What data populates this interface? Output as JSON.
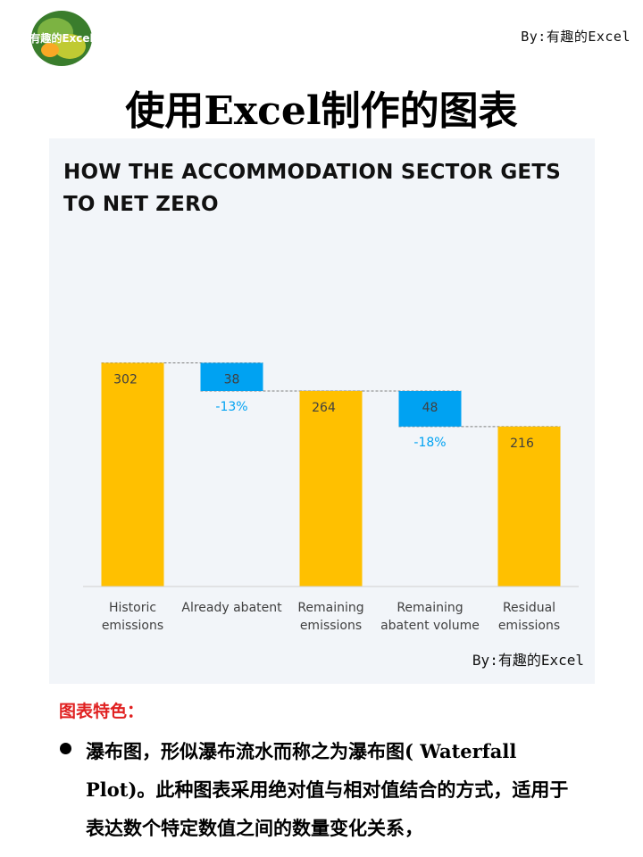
{
  "header": {
    "logo_text": "有趣的Excel",
    "byline": "By:有趣的Excel",
    "title": "使用Excel制作的图表"
  },
  "chart_panel": {
    "byline": "By:有趣的Excel"
  },
  "chart_data": {
    "type": "waterfall",
    "title": "HOW THE ACCOMMODATION SECTOR GETS TO NET ZERO",
    "categories": [
      "Historic emissions",
      "Already abatent",
      "Remaining emissions",
      "Remaining abatent volume",
      "Residual emissions"
    ],
    "values": [
      302,
      38,
      264,
      48,
      216
    ],
    "kinds": [
      "total",
      "decrease",
      "total",
      "decrease",
      "total"
    ],
    "percent_labels": [
      "",
      "-13%",
      "",
      "-18%",
      ""
    ],
    "ylim": [
      0,
      350
    ],
    "grid": false,
    "colors": {
      "total": "#ffc000",
      "decrease": "#00a2f2",
      "percent_text": "#00a2f2",
      "connector": "#7f7f7f"
    }
  },
  "features": {
    "heading": "图表特色：",
    "text": "瀑布图，形似瀑布流水而称之为瀑布图( Waterfall Plot)。此种图表采用绝对值与相对值结合的方式，适用于表达数个特定数值之间的数量变化关系，"
  }
}
